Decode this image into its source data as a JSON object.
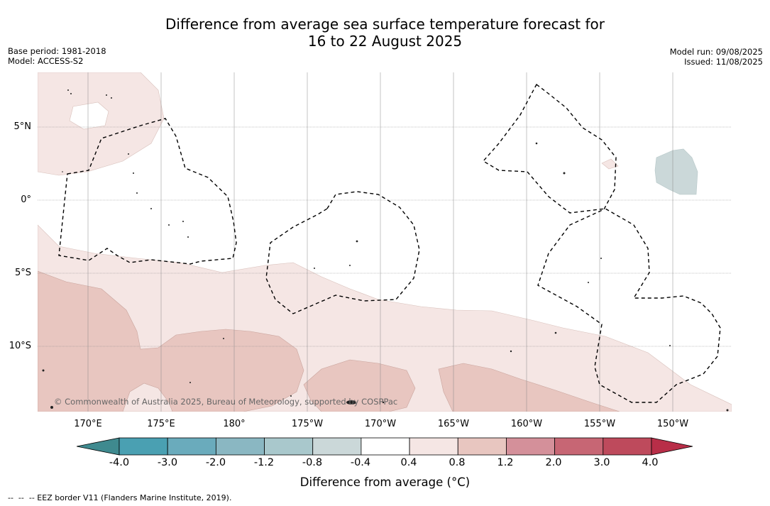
{
  "title": {
    "line1": "Difference from average sea surface temperature forecast for",
    "line2": "16 to 22 August 2025"
  },
  "meta_left": {
    "base_period": "Base period: 1981-2018",
    "model": "Model: ACCESS-S2"
  },
  "meta_right": {
    "model_run": "Model run: 09/08/2025",
    "issued": "Issued: 11/08/2025"
  },
  "lat_labels": [
    "5°N",
    "0°",
    "5°S",
    "10°S"
  ],
  "lon_labels": [
    "170°E",
    "175°E",
    "180°",
    "175°W",
    "170°W",
    "165°W",
    "160°W",
    "155°W",
    "150°W"
  ],
  "copyright": "© Commonwealth of Australia 2025, Bureau of Meteorology, supported by COSPPac",
  "colorbar": {
    "tick_labels": [
      "-4.0",
      "-3.0",
      "-2.0",
      "-1.2",
      "-0.8",
      "-0.4",
      "0.4",
      "0.8",
      "1.2",
      "2.0",
      "3.0",
      "4.0"
    ],
    "colors": [
      "#3f8a8f",
      "#4aa0b2",
      "#6aabbc",
      "#8ab7c2",
      "#a9c8cc",
      "#cbd8d9",
      "#ffffff",
      "#f5e6e4",
      "#e8c6c0",
      "#d4909a",
      "#c76674",
      "#be4a5c",
      "#b82e48"
    ],
    "title": "Difference from average (°C)"
  },
  "footnote": "--  --  -- EEZ border V11 (Flanders Marine Institute, 2019)."
}
